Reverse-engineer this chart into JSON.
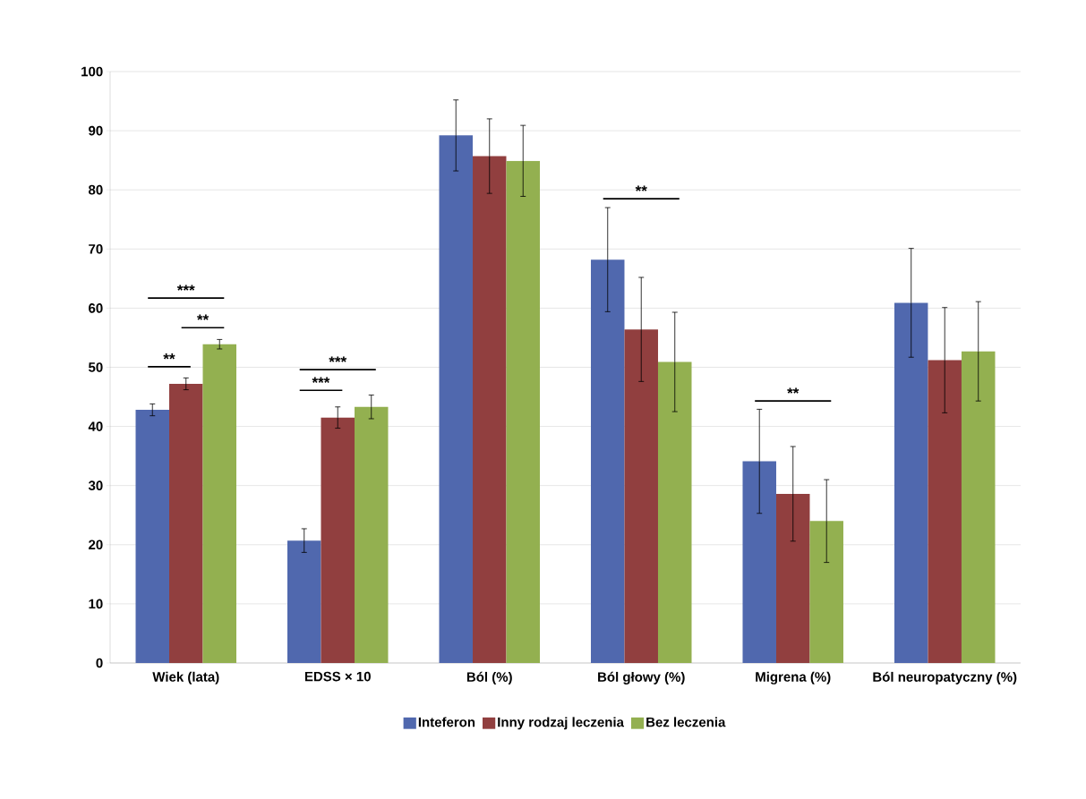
{
  "chart_data": {
    "type": "bar",
    "categories": [
      "Wiek (lata)",
      "EDSS × 10",
      "Ból (%)",
      "Ból głowy (%)",
      "Migrena (%)",
      "Ból neuropatyczny (%)"
    ],
    "series": [
      {
        "name": "Inteferon",
        "color": "#5068ae",
        "values": [
          42.8,
          20.7,
          89.2,
          68.2,
          34.1,
          60.9
        ],
        "errors": [
          1,
          2,
          6,
          8.8,
          8.8,
          9.2
        ]
      },
      {
        "name": "Inny rodzaj leczenia",
        "color": "#913f3f",
        "values": [
          47.2,
          41.5,
          85.7,
          56.4,
          28.6,
          51.2
        ],
        "errors": [
          1,
          1.8,
          6.3,
          8.8,
          8,
          8.9
        ]
      },
      {
        "name": "Bez leczenia",
        "color": "#93b050",
        "values": [
          53.9,
          43.3,
          84.9,
          50.9,
          24,
          52.7
        ],
        "errors": [
          0.8,
          2,
          6,
          8.4,
          7,
          8.4
        ]
      }
    ],
    "ylim": [
      0,
      100
    ],
    "yticks": [
      0,
      10,
      20,
      30,
      40,
      50,
      60,
      70,
      80,
      90,
      100
    ],
    "grid": "y",
    "legend": "bottom",
    "annotations": [
      "***",
      "**",
      "**",
      "***",
      "***",
      "**",
      "**"
    ]
  }
}
